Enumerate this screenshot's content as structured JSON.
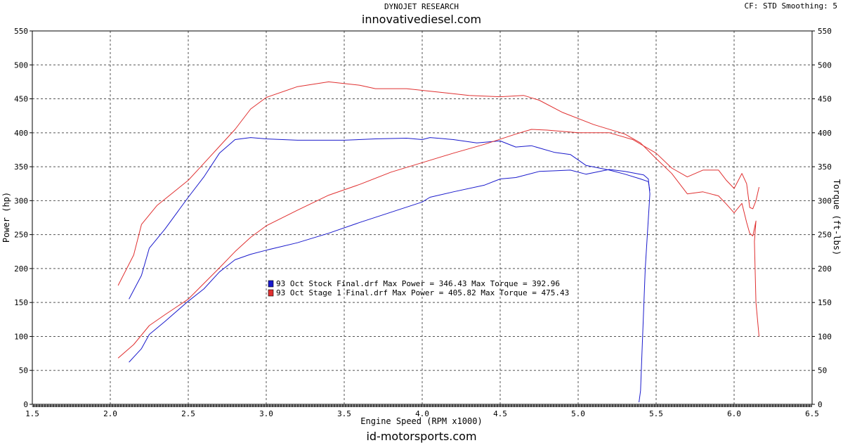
{
  "header": {
    "brand": "DYNOJET RESEARCH",
    "site": "innovativediesel.com",
    "settings": "CF: STD  Smoothing: 5"
  },
  "footer": {
    "site": "id-motorsports.com"
  },
  "colors": {
    "stock": "#1a1acc",
    "stage1": "#e03030",
    "grid": "#555555",
    "frame": "#000000"
  },
  "chart_data": {
    "type": "line",
    "title": "",
    "xlabel": "Engine Speed (RPM x1000)",
    "ylabel": "Power (hp)",
    "y2label": "Torque (ft-lbs)",
    "xlim": [
      1.5,
      6.5
    ],
    "ylim": [
      0,
      550
    ],
    "y2lim": [
      0,
      550
    ],
    "x_ticks": [
      "1.5",
      "2.0",
      "2.5",
      "3.0",
      "3.5",
      "4.0",
      "4.5",
      "5.0",
      "5.5",
      "6.0",
      "6.5"
    ],
    "y_ticks": [
      "0",
      "50",
      "100",
      "150",
      "200",
      "250",
      "300",
      "350",
      "400",
      "450",
      "500",
      "550"
    ],
    "grid": true,
    "legend_position": "center-left",
    "legend": [
      {
        "key": "stock",
        "text": "93 Oct Stock Final.drf Max Power = 346.43    Max Torque = 392.96"
      },
      {
        "key": "stage1",
        "text": "93 Oct Stage 1 Final.drf Max Power = 405.82    Max Torque = 475.43"
      }
    ],
    "series": [
      {
        "key": "stock",
        "measure": "power",
        "points": [
          [
            2.12,
            62
          ],
          [
            2.2,
            82
          ],
          [
            2.25,
            103
          ],
          [
            2.35,
            122
          ],
          [
            2.5,
            152
          ],
          [
            2.6,
            170
          ],
          [
            2.7,
            195
          ],
          [
            2.8,
            213
          ],
          [
            2.9,
            221
          ],
          [
            3.0,
            227
          ],
          [
            3.2,
            238
          ],
          [
            3.4,
            252
          ],
          [
            3.6,
            268
          ],
          [
            3.8,
            283
          ],
          [
            4.0,
            298
          ],
          [
            4.05,
            305
          ],
          [
            4.2,
            313
          ],
          [
            4.4,
            323
          ],
          [
            4.5,
            332
          ],
          [
            4.6,
            334
          ],
          [
            4.75,
            343
          ],
          [
            4.85,
            344
          ],
          [
            4.95,
            345
          ],
          [
            5.05,
            339
          ],
          [
            5.2,
            346
          ],
          [
            5.3,
            343
          ],
          [
            5.42,
            338
          ],
          [
            5.45,
            332
          ],
          [
            5.46,
            310
          ],
          [
            5.43,
            200
          ],
          [
            5.41,
            80
          ],
          [
            5.4,
            20
          ],
          [
            5.39,
            3
          ]
        ]
      },
      {
        "key": "stock",
        "measure": "torque",
        "points": [
          [
            2.12,
            155
          ],
          [
            2.2,
            190
          ],
          [
            2.25,
            230
          ],
          [
            2.35,
            258
          ],
          [
            2.5,
            305
          ],
          [
            2.6,
            335
          ],
          [
            2.7,
            370
          ],
          [
            2.8,
            390
          ],
          [
            2.9,
            393
          ],
          [
            3.0,
            391
          ],
          [
            3.2,
            389
          ],
          [
            3.5,
            389
          ],
          [
            3.7,
            391
          ],
          [
            3.9,
            392
          ],
          [
            4.0,
            390
          ],
          [
            4.05,
            393
          ],
          [
            4.2,
            390
          ],
          [
            4.35,
            385
          ],
          [
            4.5,
            388
          ],
          [
            4.6,
            379
          ],
          [
            4.7,
            381
          ],
          [
            4.85,
            371
          ],
          [
            4.95,
            368
          ],
          [
            5.05,
            352
          ],
          [
            5.2,
            345
          ],
          [
            5.3,
            339
          ],
          [
            5.4,
            332
          ],
          [
            5.45,
            328
          ],
          [
            5.46,
            315
          ]
        ]
      },
      {
        "key": "stage1",
        "measure": "power",
        "points": [
          [
            2.05,
            68
          ],
          [
            2.15,
            88
          ],
          [
            2.25,
            116
          ],
          [
            2.35,
            132
          ],
          [
            2.5,
            155
          ],
          [
            2.6,
            178
          ],
          [
            2.7,
            201
          ],
          [
            2.8,
            225
          ],
          [
            2.9,
            246
          ],
          [
            3.0,
            263
          ],
          [
            3.2,
            286
          ],
          [
            3.4,
            308
          ],
          [
            3.6,
            324
          ],
          [
            3.8,
            342
          ],
          [
            4.0,
            356
          ],
          [
            4.2,
            370
          ],
          [
            4.4,
            383
          ],
          [
            4.6,
            398
          ],
          [
            4.7,
            405
          ],
          [
            4.8,
            404
          ],
          [
            4.9,
            402
          ],
          [
            5.0,
            400
          ],
          [
            5.2,
            400
          ],
          [
            5.35,
            390
          ],
          [
            5.5,
            370
          ],
          [
            5.6,
            348
          ],
          [
            5.7,
            335
          ],
          [
            5.8,
            345
          ],
          [
            5.9,
            345
          ],
          [
            5.95,
            330
          ],
          [
            6.0,
            318
          ],
          [
            6.05,
            340
          ],
          [
            6.08,
            325
          ],
          [
            6.1,
            290
          ],
          [
            6.12,
            288
          ],
          [
            6.14,
            300
          ],
          [
            6.16,
            320
          ]
        ]
      },
      {
        "key": "stage1",
        "measure": "torque",
        "points": [
          [
            2.05,
            175
          ],
          [
            2.15,
            220
          ],
          [
            2.2,
            265
          ],
          [
            2.3,
            293
          ],
          [
            2.5,
            330
          ],
          [
            2.6,
            355
          ],
          [
            2.7,
            380
          ],
          [
            2.8,
            405
          ],
          [
            2.9,
            435
          ],
          [
            3.0,
            452
          ],
          [
            3.2,
            468
          ],
          [
            3.4,
            475
          ],
          [
            3.6,
            470
          ],
          [
            3.7,
            465
          ],
          [
            3.9,
            465
          ],
          [
            4.1,
            460
          ],
          [
            4.3,
            455
          ],
          [
            4.5,
            453
          ],
          [
            4.65,
            455
          ],
          [
            4.75,
            448
          ],
          [
            4.9,
            430
          ],
          [
            5.1,
            412
          ],
          [
            5.3,
            398
          ],
          [
            5.4,
            385
          ],
          [
            5.5,
            362
          ],
          [
            5.6,
            340
          ],
          [
            5.7,
            310
          ],
          [
            5.8,
            313
          ],
          [
            5.9,
            307
          ],
          [
            5.95,
            295
          ],
          [
            6.0,
            282
          ],
          [
            6.05,
            296
          ],
          [
            6.08,
            268
          ],
          [
            6.1,
            252
          ],
          [
            6.12,
            248
          ],
          [
            6.14,
            270
          ],
          [
            6.13,
            240
          ],
          [
            6.14,
            150
          ],
          [
            6.16,
            100
          ]
        ]
      }
    ]
  }
}
